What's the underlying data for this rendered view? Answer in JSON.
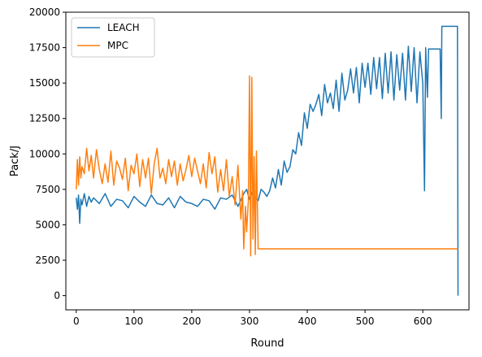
{
  "chart_data": {
    "type": "line",
    "title": "",
    "xlabel": "Round",
    "ylabel": "Pack/J",
    "xlim": [
      -18,
      680
    ],
    "ylim": [
      -1000,
      20000
    ],
    "xticks": [
      0,
      100,
      200,
      300,
      400,
      500,
      600
    ],
    "yticks": [
      0,
      2500,
      5000,
      7500,
      10000,
      12500,
      15000,
      17500,
      20000
    ],
    "grid": false,
    "legend": {
      "position": "top-left"
    },
    "series": [
      {
        "name": "LEACH",
        "color": "#1f77b4",
        "x": [
          0,
          2,
          4,
          6,
          8,
          10,
          14,
          18,
          22,
          26,
          30,
          40,
          50,
          60,
          70,
          80,
          90,
          100,
          110,
          120,
          130,
          140,
          150,
          160,
          170,
          180,
          190,
          200,
          210,
          220,
          230,
          240,
          250,
          260,
          270,
          280,
          290,
          295,
          300,
          305,
          310,
          315,
          320,
          325,
          330,
          335,
          340,
          345,
          350,
          355,
          360,
          365,
          370,
          375,
          380,
          385,
          390,
          395,
          400,
          405,
          410,
          415,
          420,
          425,
          430,
          435,
          440,
          445,
          450,
          455,
          460,
          465,
          470,
          475,
          480,
          485,
          490,
          495,
          500,
          505,
          510,
          515,
          520,
          525,
          530,
          535,
          540,
          545,
          550,
          555,
          560,
          565,
          570,
          575,
          580,
          585,
          590,
          595,
          600,
          603,
          605,
          608,
          610,
          620,
          630,
          632,
          633,
          634,
          636,
          640,
          645,
          650,
          655,
          660,
          661
        ],
        "y": [
          6900,
          6100,
          7100,
          5100,
          6800,
          6400,
          7200,
          6300,
          7000,
          6600,
          6900,
          6500,
          7200,
          6300,
          6800,
          6700,
          6200,
          7000,
          6600,
          6300,
          7100,
          6500,
          6400,
          6900,
          6200,
          7000,
          6600,
          6500,
          6300,
          6800,
          6700,
          6100,
          6900,
          6800,
          7100,
          6300,
          7200,
          7500,
          6800,
          7300,
          6900,
          6700,
          7500,
          7300,
          7000,
          7400,
          8300,
          7600,
          8900,
          7800,
          9500,
          8700,
          9100,
          10300,
          10000,
          11500,
          10600,
          12900,
          11800,
          13500,
          13000,
          13500,
          14200,
          12700,
          14900,
          13600,
          14300,
          13200,
          15200,
          13000,
          15700,
          13800,
          14500,
          16000,
          14300,
          16100,
          13600,
          16400,
          14700,
          16400,
          14200,
          16800,
          14600,
          16800,
          13900,
          17100,
          14300,
          17200,
          13800,
          17000,
          14500,
          17100,
          13800,
          17600,
          14400,
          17500,
          13600,
          17200,
          15000,
          7400,
          17500,
          14000,
          17400,
          17400,
          17400,
          12500,
          19000,
          19000,
          19000,
          19000,
          19000,
          19000,
          19000,
          19000,
          0
        ]
      },
      {
        "name": "MPC",
        "color": "#ff7f0e",
        "x": [
          0,
          2,
          4,
          6,
          8,
          10,
          14,
          18,
          22,
          26,
          30,
          35,
          40,
          45,
          50,
          55,
          60,
          65,
          70,
          75,
          80,
          85,
          90,
          95,
          100,
          105,
          110,
          115,
          120,
          125,
          130,
          135,
          140,
          145,
          150,
          155,
          160,
          165,
          170,
          175,
          180,
          185,
          190,
          195,
          200,
          205,
          210,
          215,
          220,
          225,
          230,
          235,
          240,
          245,
          250,
          255,
          260,
          265,
          270,
          275,
          280,
          285,
          288,
          290,
          293,
          295,
          298,
          300,
          302,
          304,
          306,
          308,
          310,
          312,
          315,
          320,
          400,
          500,
          600,
          661
        ],
        "y": [
          7500,
          9600,
          7800,
          9800,
          8300,
          9100,
          8600,
          10400,
          8800,
          9900,
          8300,
          10300,
          8900,
          7900,
          9300,
          8000,
          10200,
          7800,
          9500,
          9000,
          8200,
          9700,
          7400,
          9200,
          8600,
          10000,
          7700,
          9600,
          8300,
          9700,
          7200,
          9300,
          10400,
          8300,
          9000,
          7900,
          9600,
          8400,
          9500,
          7800,
          9300,
          8100,
          8900,
          9900,
          8400,
          9700,
          8800,
          7900,
          9300,
          7600,
          10100,
          8600,
          9800,
          7300,
          8900,
          7400,
          9600,
          7000,
          8400,
          6400,
          9200,
          5400,
          7400,
          3300,
          6300,
          4500,
          6700,
          15500,
          2800,
          15400,
          4000,
          9800,
          2900,
          10200,
          3300,
          3300,
          3300,
          3300,
          3300,
          3300
        ]
      }
    ]
  }
}
